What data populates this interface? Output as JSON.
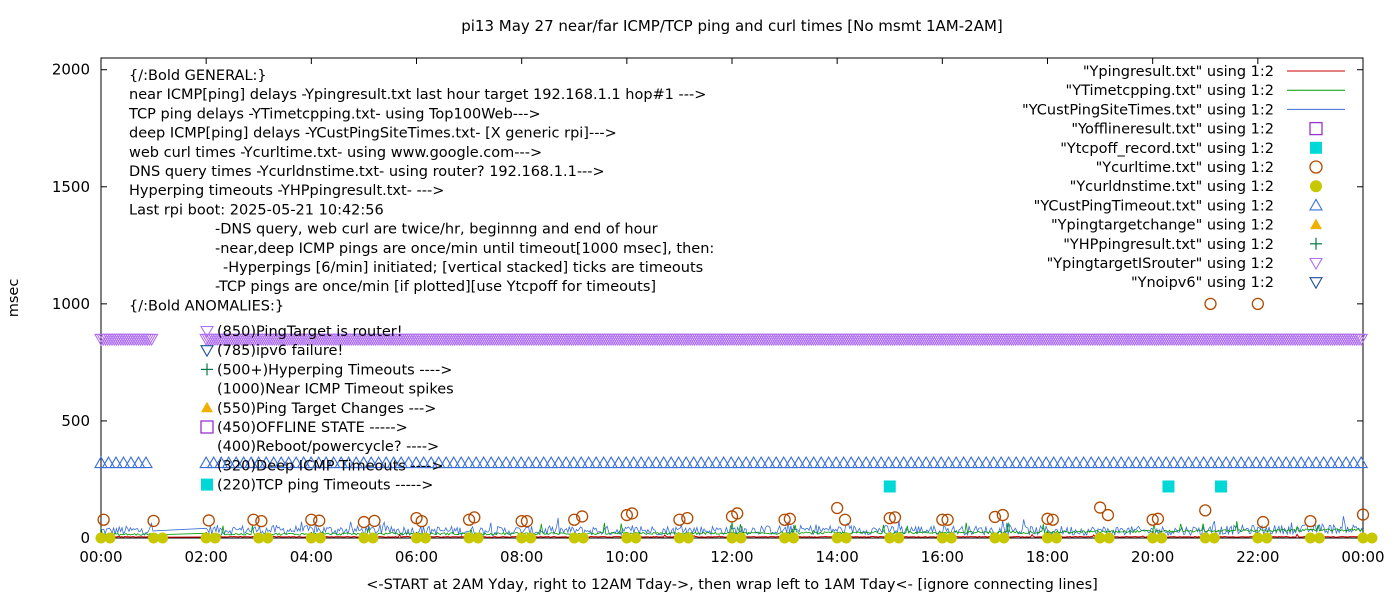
{
  "chart_data": {
    "type": "line",
    "title": "pi13 May 27  near/far ICMP/TCP ping and curl times [No msmt 1AM-2AM]",
    "ylabel": "msec",
    "xlabel": "<-START at 2AM Yday, right to 12AM Tday->, then wrap left to 1AM Tday<- [ignore connecting lines]",
    "xlim": [
      0,
      24
    ],
    "ylim": [
      0,
      2050
    ],
    "x_ticks": [
      "00:00",
      "02:00",
      "04:00",
      "06:00",
      "08:00",
      "10:00",
      "12:00",
      "14:00",
      "16:00",
      "18:00",
      "20:00",
      "22:00",
      "00:00"
    ],
    "y_ticks": [
      "0",
      "500",
      "1000",
      "1500",
      "2000"
    ],
    "legend_position": "top-right",
    "legend": [
      {
        "label": "\"Ypingresult.txt\" using 1:2",
        "color": "#cc0000",
        "marker": "line"
      },
      {
        "label": "\"YTimetcpping.txt\" using 1:2",
        "color": "#009900",
        "marker": "line"
      },
      {
        "label": "\"YCustPingSiteTimes.txt\" using 1:2",
        "color": "#3a6fd8",
        "marker": "line"
      },
      {
        "label": "\"Yofflineresult.txt\" using 1:2",
        "color": "#9933cc",
        "marker": "open-square"
      },
      {
        "label": "\"Ytcpoff_record.txt\" using 1:2",
        "color": "#00d8d8",
        "marker": "filled-square"
      },
      {
        "label": "\"Ycurltime.txt\" using 1:2",
        "color": "#b04a00",
        "marker": "open-circle"
      },
      {
        "label": "\"Ycurldnstime.txt\" using 1:2",
        "color": "#c8c800",
        "marker": "filled-circle"
      },
      {
        "label": "\"YCustPingTimeout.txt\" using 1:2",
        "color": "#3a6fd8",
        "marker": "open-triangle"
      },
      {
        "label": "\"Ypingtargetchange\" using 1:2",
        "color": "#f0b000",
        "marker": "filled-triangle"
      },
      {
        "label": "\"YHPpingresult.txt\" using 1:2",
        "color": "#007744",
        "marker": "plus"
      },
      {
        "label": "\"YpingtargetISrouter\" using 1:2",
        "color": "#b070f0",
        "marker": "open-down-triangle"
      },
      {
        "label": "\"Ynoipv6\" using 1:2",
        "color": "#2050a0",
        "marker": "open-down-triangle"
      }
    ],
    "notes": [
      "{/:Bold GENERAL:}",
      "near ICMP[ping] delays -Ypingresult.txt last hour target 192.168.1.1 hop#1 --->",
      "TCP ping delays -YTimetcpping.txt- using Top100Web--->",
      "deep ICMP[ping] delays -YCustPingSiteTimes.txt- [X generic rpi]--->",
      "web curl times -Ycurltime.txt- using www.google.com--->",
      "DNS query times -Ycurldnstime.txt- using router? 192.168.1.1--->",
      "Hyperping timeouts -YHPpingresult.txt- --->",
      "Last rpi boot: 2025-05-21 10:42:56",
      "-DNS query, web curl are twice/hr, beginnng and end of hour",
      "-near,deep ICMP pings are once/min until timeout[1000 msec], then:",
      "-Hyperpings [6/min] initiated; [vertical stacked] ticks are timeouts",
      "-TCP pings are once/min [if plotted][use Ytcpoff for timeouts]",
      "{/:Bold ANOMALIES:}"
    ],
    "anomalies": [
      "(850)PingTarget is router!",
      "(785)ipv6 failure!",
      "(500+)Hyperping Timeouts ---->",
      "(1000)Near ICMP Timeout spikes",
      "(550)Ping Target Changes --->",
      "(450)OFFLINE STATE ----->",
      "(400)Reboot/powercycle? ---->",
      "(320)Deep ICMP Timeouts ---->",
      "(220)TCP ping Timeouts ----->"
    ],
    "series": [
      {
        "name": "\"YpingtargetISrouter\" using 1:2",
        "level": 850,
        "segments": [
          [
            0,
            1.0
          ],
          [
            2.0,
            24
          ]
        ]
      },
      {
        "name": "\"YCustPingTimeout.txt\" using 1:2",
        "level": 320,
        "segments": [
          [
            0,
            0.9
          ],
          [
            2.0,
            24
          ]
        ]
      },
      {
        "name": "\"Ytcpoff_record.txt\" using 1:2",
        "points": [
          [
            15.0,
            220
          ],
          [
            20.3,
            220
          ],
          [
            21.3,
            220
          ]
        ]
      },
      {
        "name": "\"Ycurltime.txt\" using 1:2",
        "points": [
          [
            0.05,
            78
          ],
          [
            1.0,
            73
          ],
          [
            2.05,
            75
          ],
          [
            2.9,
            78
          ],
          [
            3.05,
            72
          ],
          [
            4.0,
            78
          ],
          [
            4.15,
            74
          ],
          [
            5.0,
            68
          ],
          [
            5.2,
            73
          ],
          [
            6.0,
            85
          ],
          [
            6.1,
            72
          ],
          [
            7.0,
            78
          ],
          [
            7.1,
            88
          ],
          [
            8.0,
            72
          ],
          [
            8.1,
            72
          ],
          [
            9.0,
            78
          ],
          [
            9.15,
            92
          ],
          [
            10.0,
            98
          ],
          [
            10.1,
            105
          ],
          [
            11.0,
            78
          ],
          [
            11.15,
            85
          ],
          [
            12.0,
            92
          ],
          [
            12.1,
            105
          ],
          [
            13.0,
            78
          ],
          [
            13.1,
            82
          ],
          [
            14.0,
            128
          ],
          [
            14.15,
            78
          ],
          [
            15.0,
            85
          ],
          [
            15.1,
            88
          ],
          [
            16.0,
            78
          ],
          [
            16.1,
            78
          ],
          [
            17.0,
            90
          ],
          [
            17.15,
            98
          ],
          [
            18.0,
            82
          ],
          [
            18.1,
            78
          ],
          [
            19.0,
            130
          ],
          [
            19.15,
            98
          ],
          [
            20.0,
            78
          ],
          [
            20.1,
            82
          ],
          [
            21.0,
            118
          ],
          [
            21.1,
            1000
          ],
          [
            22.0,
            1000
          ],
          [
            22.1,
            68
          ],
          [
            23.0,
            72
          ],
          [
            24.0,
            100
          ]
        ]
      },
      {
        "name": "\"Ycurldnstime.txt\" using 1:2",
        "points": [
          [
            0,
            0
          ],
          [
            1,
            0
          ],
          [
            2,
            0
          ],
          [
            3,
            0
          ],
          [
            4,
            0
          ],
          [
            5,
            0
          ],
          [
            6,
            0
          ],
          [
            7,
            0
          ],
          [
            8,
            0
          ],
          [
            9,
            0
          ],
          [
            10,
            0
          ],
          [
            11,
            0
          ],
          [
            12,
            0
          ],
          [
            13,
            0
          ],
          [
            14,
            0
          ],
          [
            15,
            0
          ],
          [
            16,
            0
          ],
          [
            17,
            0
          ],
          [
            18,
            0
          ],
          [
            19,
            0
          ],
          [
            20,
            0
          ],
          [
            21,
            0
          ],
          [
            22,
            0
          ],
          [
            23,
            0
          ],
          [
            24,
            0
          ]
        ]
      },
      {
        "name": "\"Ypingresult.txt\" using 1:2",
        "points": [
          [
            0,
            5
          ],
          [
            24,
            5
          ]
        ]
      },
      {
        "name": "\"YTimetcpping.txt\" using 1:2",
        "points": [
          [
            0,
            15
          ],
          [
            6,
            18
          ],
          [
            12,
            20
          ],
          [
            18,
            25
          ],
          [
            24,
            35
          ]
        ]
      },
      {
        "name": "\"YCustPingSiteTimes.txt\" using 1:2",
        "points": [
          [
            0,
            30
          ],
          [
            2,
            35
          ],
          [
            8,
            30
          ],
          [
            14,
            35
          ],
          [
            20,
            30
          ],
          [
            24,
            40
          ]
        ]
      }
    ]
  }
}
